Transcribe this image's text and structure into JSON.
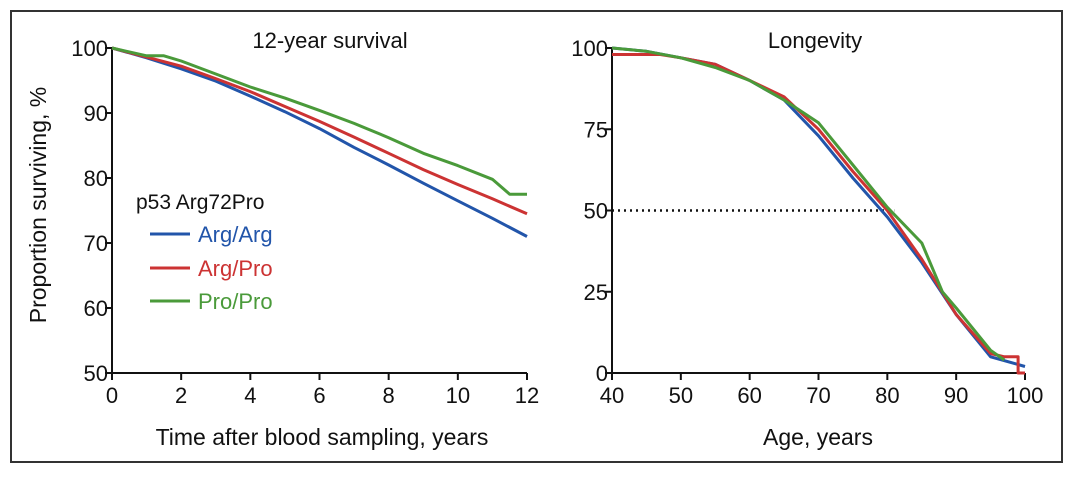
{
  "chart_data": [
    {
      "type": "line",
      "title": "12-year survival",
      "xlabel": "Time after blood sampling, years",
      "ylabel": "Proportion surviving, %",
      "xlim": [
        0,
        12
      ],
      "ylim": [
        50,
        100
      ],
      "xticks": [
        0,
        2,
        4,
        6,
        8,
        10,
        12
      ],
      "yticks": [
        50,
        60,
        70,
        80,
        90,
        100
      ],
      "legend": {
        "title": "p53 Arg72Pro",
        "position": "center-left",
        "entries": [
          "Arg/Arg",
          "Arg/Pro",
          "Pro/Pro"
        ]
      },
      "series": [
        {
          "name": "Arg/Arg",
          "color": "#2255aa",
          "x": [
            0,
            1,
            2,
            3,
            4,
            5,
            6,
            7,
            8,
            9,
            10,
            11,
            12
          ],
          "y": [
            100,
            98.5,
            96.8,
            94.9,
            92.6,
            90.2,
            87.6,
            84.7,
            82.0,
            79.2,
            76.5,
            73.8,
            71.0
          ]
        },
        {
          "name": "Arg/Pro",
          "color": "#cc3333",
          "x": [
            0,
            1,
            2,
            3,
            4,
            5,
            6,
            7,
            8,
            9,
            10,
            11,
            12
          ],
          "y": [
            100,
            98.6,
            97.2,
            95.3,
            93.3,
            91.0,
            88.7,
            86.3,
            83.8,
            81.3,
            79.0,
            76.8,
            74.5
          ]
        },
        {
          "name": "Pro/Pro",
          "color": "#4a9a3a",
          "x": [
            0,
            1,
            1.5,
            2,
            3,
            4,
            5,
            6,
            7,
            8,
            9,
            10,
            11,
            11.5,
            12
          ],
          "y": [
            100,
            98.8,
            98.8,
            98.0,
            96.0,
            94.0,
            92.3,
            90.4,
            88.4,
            86.2,
            83.8,
            81.9,
            79.8,
            77.5,
            77.5
          ]
        }
      ]
    },
    {
      "type": "line",
      "title": "Longevity",
      "xlabel": "Age, years",
      "ylabel": "",
      "xlim": [
        40,
        100
      ],
      "ylim": [
        0,
        100
      ],
      "xticks": [
        40,
        50,
        60,
        70,
        80,
        90,
        100
      ],
      "yticks": [
        0,
        25,
        50,
        75,
        100
      ],
      "reference_line": {
        "y": 50,
        "x_from": 40,
        "x_to": 81,
        "style": "dotted"
      },
      "series": [
        {
          "name": "Arg/Arg",
          "color": "#2255aa",
          "x": [
            40,
            45,
            50,
            55,
            60,
            65,
            70,
            75,
            80,
            85,
            90,
            95,
            100
          ],
          "y": [
            100,
            99,
            97,
            95,
            90,
            84,
            73,
            60,
            48,
            34,
            18,
            5,
            2
          ]
        },
        {
          "name": "Arg/Pro",
          "color": "#cc3333",
          "x": [
            40,
            47,
            50,
            55,
            60,
            65,
            70,
            75,
            80,
            85,
            90,
            95,
            97,
            99,
            99,
            100
          ],
          "y": [
            98,
            98,
            97,
            95,
            90,
            85,
            75,
            62,
            50,
            35,
            18,
            6,
            5,
            5,
            0,
            0
          ]
        },
        {
          "name": "Pro/Pro",
          "color": "#4a9a3a",
          "x": [
            40,
            45,
            50,
            55,
            60,
            65,
            70,
            75,
            80,
            85,
            88,
            88,
            90,
            95,
            97
          ],
          "y": [
            100,
            99,
            97,
            94,
            90,
            84,
            77,
            64,
            51,
            40,
            25,
            25,
            20,
            7,
            4
          ]
        }
      ]
    }
  ]
}
